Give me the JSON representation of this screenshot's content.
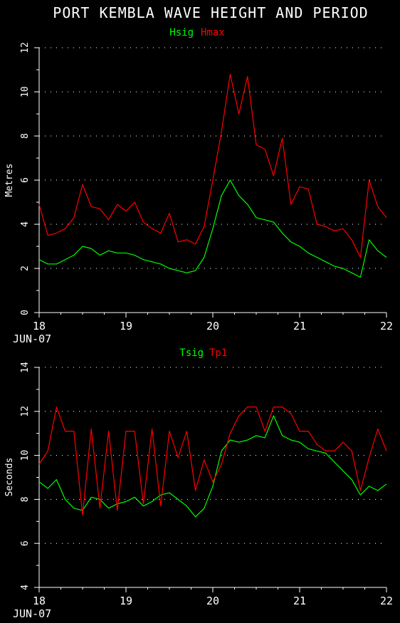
{
  "title": "PORT KEMBLA WAVE HEIGHT AND PERIOD",
  "colors": {
    "green": "#00ff00",
    "red": "#ff0000",
    "axis": "#ffffff",
    "background": "#000000"
  },
  "chart_data": [
    {
      "type": "line",
      "ylabel": "Metres",
      "ylim": [
        0,
        12
      ],
      "yticks": [
        "0",
        "2",
        "4",
        "6",
        "8",
        "10",
        "12"
      ],
      "xlim": [
        18,
        22
      ],
      "xticks": [
        "18",
        "19",
        "20",
        "21",
        "22"
      ],
      "xsub": "JUN-07",
      "grid": true,
      "legend": "top-center",
      "series": [
        {
          "name": "Hsig",
          "color": "#00ff00",
          "x": [
            18.0,
            18.1,
            18.2,
            18.3,
            18.4,
            18.5,
            18.6,
            18.7,
            18.8,
            18.9,
            19.0,
            19.1,
            19.2,
            19.3,
            19.4,
            19.5,
            19.6,
            19.7,
            19.8,
            19.9,
            20.0,
            20.1,
            20.2,
            20.3,
            20.4,
            20.5,
            20.6,
            20.7,
            20.8,
            20.9,
            21.0,
            21.1,
            21.2,
            21.3,
            21.4,
            21.5,
            21.6,
            21.7,
            21.8,
            21.9,
            22.0
          ],
          "y": [
            2.4,
            2.2,
            2.2,
            2.4,
            2.6,
            3.0,
            2.9,
            2.6,
            2.8,
            2.7,
            2.7,
            2.6,
            2.4,
            2.3,
            2.2,
            2.0,
            1.9,
            1.8,
            1.9,
            2.5,
            3.8,
            5.3,
            6.0,
            5.3,
            4.9,
            4.3,
            4.2,
            4.1,
            3.6,
            3.2,
            3.0,
            2.7,
            2.5,
            2.3,
            2.1,
            2.0,
            1.8,
            1.6,
            3.3,
            2.8,
            2.5
          ]
        },
        {
          "name": "Hmax",
          "color": "#ff0000",
          "x": [
            18.0,
            18.1,
            18.2,
            18.3,
            18.4,
            18.5,
            18.6,
            18.7,
            18.8,
            18.9,
            19.0,
            19.1,
            19.2,
            19.3,
            19.4,
            19.5,
            19.6,
            19.7,
            19.8,
            19.9,
            20.0,
            20.1,
            20.2,
            20.3,
            20.4,
            20.5,
            20.6,
            20.7,
            20.8,
            20.9,
            21.0,
            21.1,
            21.2,
            21.3,
            21.4,
            21.5,
            21.6,
            21.7,
            21.8,
            21.9,
            22.0
          ],
          "y": [
            4.9,
            3.5,
            3.6,
            3.8,
            4.3,
            5.8,
            4.8,
            4.7,
            4.2,
            4.9,
            4.6,
            5.0,
            4.1,
            3.8,
            3.6,
            4.5,
            3.2,
            3.3,
            3.1,
            3.9,
            6.0,
            8.2,
            10.8,
            9.0,
            10.7,
            7.6,
            7.4,
            6.2,
            7.9,
            4.9,
            5.7,
            5.6,
            4.0,
            3.9,
            3.7,
            3.8,
            3.3,
            2.5,
            6.0,
            4.8,
            4.3
          ]
        }
      ]
    },
    {
      "type": "line",
      "ylabel": "Seconds",
      "ylim": [
        4,
        14
      ],
      "yticks": [
        "4",
        "6",
        "8",
        "10",
        "12",
        "14"
      ],
      "xlim": [
        18,
        22
      ],
      "xticks": [
        "18",
        "19",
        "20",
        "21",
        "22"
      ],
      "xsub": "JUN-07",
      "grid": true,
      "legend": "top-center",
      "series": [
        {
          "name": "Tsig",
          "color": "#00ff00",
          "x": [
            18.0,
            18.1,
            18.2,
            18.3,
            18.4,
            18.5,
            18.6,
            18.7,
            18.8,
            18.9,
            19.0,
            19.1,
            19.2,
            19.3,
            19.4,
            19.5,
            19.6,
            19.7,
            19.8,
            19.9,
            20.0,
            20.1,
            20.2,
            20.3,
            20.4,
            20.5,
            20.6,
            20.7,
            20.8,
            20.9,
            21.0,
            21.1,
            21.2,
            21.3,
            21.4,
            21.5,
            21.6,
            21.7,
            21.8,
            21.9,
            22.0
          ],
          "y": [
            8.8,
            8.5,
            8.9,
            8.0,
            7.6,
            7.5,
            8.1,
            8.0,
            7.6,
            7.8,
            7.9,
            8.1,
            7.7,
            7.9,
            8.2,
            8.3,
            8.0,
            7.7,
            7.2,
            7.6,
            8.6,
            10.2,
            10.7,
            10.6,
            10.7,
            10.9,
            10.8,
            11.8,
            10.9,
            10.7,
            10.6,
            10.3,
            10.2,
            10.1,
            9.7,
            9.3,
            8.9,
            8.2,
            8.6,
            8.4,
            8.7
          ]
        },
        {
          "name": "Tp1",
          "color": "#ff0000",
          "x": [
            18.0,
            18.1,
            18.2,
            18.3,
            18.4,
            18.5,
            18.6,
            18.7,
            18.8,
            18.9,
            19.0,
            19.1,
            19.2,
            19.3,
            19.4,
            19.5,
            19.6,
            19.7,
            19.8,
            19.9,
            20.0,
            20.1,
            20.2,
            20.3,
            20.4,
            20.5,
            20.6,
            20.7,
            20.8,
            20.9,
            21.0,
            21.1,
            21.2,
            21.3,
            21.4,
            21.5,
            21.6,
            21.7,
            21.8,
            21.9,
            22.0
          ],
          "y": [
            9.6,
            10.2,
            12.2,
            11.1,
            11.1,
            7.3,
            11.2,
            7.6,
            11.1,
            7.5,
            11.1,
            11.1,
            7.8,
            11.2,
            7.7,
            11.1,
            9.9,
            11.1,
            8.4,
            9.8,
            8.8,
            9.6,
            11.0,
            11.8,
            12.2,
            12.2,
            11.1,
            12.2,
            12.2,
            11.9,
            11.1,
            11.1,
            10.5,
            10.2,
            10.2,
            10.6,
            10.2,
            8.4,
            9.9,
            11.2,
            10.2
          ]
        }
      ]
    }
  ]
}
